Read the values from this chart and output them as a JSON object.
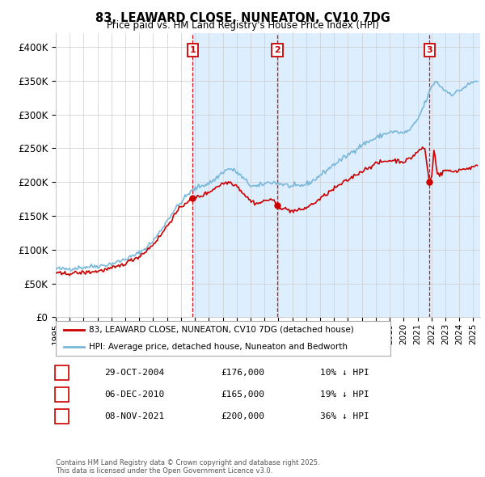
{
  "title": "83, LEAWARD CLOSE, NUNEATON, CV10 7DG",
  "subtitle": "Price paid vs. HM Land Registry's House Price Index (HPI)",
  "hpi_label": "HPI: Average price, detached house, Nuneaton and Bedworth",
  "property_label": "83, LEAWARD CLOSE, NUNEATON, CV10 7DG (detached house)",
  "footer": "Contains HM Land Registry data © Crown copyright and database right 2025.\nThis data is licensed under the Open Government Licence v3.0.",
  "transactions": [
    {
      "num": 1,
      "date": "29-OCT-2004",
      "price": 176000,
      "pct": "10%",
      "year_x": 2004.83
    },
    {
      "num": 2,
      "date": "06-DEC-2010",
      "price": 165000,
      "pct": "19%",
      "year_x": 2010.92
    },
    {
      "num": 3,
      "date": "08-NOV-2021",
      "price": 200000,
      "pct": "36%",
      "year_x": 2021.85
    }
  ],
  "ylim": [
    0,
    420000
  ],
  "yticks": [
    0,
    50000,
    100000,
    150000,
    200000,
    250000,
    300000,
    350000,
    400000
  ],
  "ytick_labels": [
    "£0",
    "£50K",
    "£100K",
    "£150K",
    "£200K",
    "£250K",
    "£300K",
    "£350K",
    "£400K"
  ],
  "x_start": 1995.0,
  "x_end": 2025.5,
  "xticks": [
    1995,
    1996,
    1997,
    1998,
    1999,
    2000,
    2001,
    2002,
    2003,
    2004,
    2005,
    2006,
    2007,
    2008,
    2009,
    2010,
    2011,
    2012,
    2013,
    2014,
    2015,
    2016,
    2017,
    2018,
    2019,
    2020,
    2021,
    2022,
    2023,
    2024,
    2025
  ],
  "hpi_color": "#7ab8d9",
  "property_color": "#cc0000",
  "transaction_color": "#cc0000",
  "shade_color": "#ddeeff",
  "grid_color": "#cccccc",
  "bg_color": "#ffffff",
  "hpi_anchors": [
    [
      1995.0,
      72000
    ],
    [
      1995.5,
      71000
    ],
    [
      1996.0,
      72000
    ],
    [
      1996.5,
      73000
    ],
    [
      1997.0,
      74000
    ],
    [
      1997.5,
      75000
    ],
    [
      1998.0,
      76000
    ],
    [
      1998.5,
      77000
    ],
    [
      1999.0,
      79000
    ],
    [
      1999.5,
      82000
    ],
    [
      2000.0,
      86000
    ],
    [
      2000.5,
      90000
    ],
    [
      2001.0,
      95000
    ],
    [
      2001.5,
      103000
    ],
    [
      2002.0,
      113000
    ],
    [
      2002.5,
      127000
    ],
    [
      2003.0,
      143000
    ],
    [
      2003.5,
      158000
    ],
    [
      2004.0,
      170000
    ],
    [
      2004.5,
      182000
    ],
    [
      2005.0,
      190000
    ],
    [
      2005.5,
      195000
    ],
    [
      2006.0,
      198000
    ],
    [
      2006.5,
      205000
    ],
    [
      2007.0,
      215000
    ],
    [
      2007.5,
      220000
    ],
    [
      2008.0,
      215000
    ],
    [
      2008.5,
      205000
    ],
    [
      2009.0,
      195000
    ],
    [
      2009.5,
      193000
    ],
    [
      2010.0,
      198000
    ],
    [
      2010.5,
      200000
    ],
    [
      2011.0,
      198000
    ],
    [
      2011.5,
      196000
    ],
    [
      2012.0,
      193000
    ],
    [
      2012.5,
      194000
    ],
    [
      2013.0,
      197000
    ],
    [
      2013.5,
      202000
    ],
    [
      2014.0,
      210000
    ],
    [
      2014.5,
      218000
    ],
    [
      2015.0,
      226000
    ],
    [
      2015.5,
      233000
    ],
    [
      2016.0,
      240000
    ],
    [
      2016.5,
      248000
    ],
    [
      2017.0,
      255000
    ],
    [
      2017.5,
      260000
    ],
    [
      2018.0,
      265000
    ],
    [
      2018.5,
      270000
    ],
    [
      2019.0,
      274000
    ],
    [
      2019.5,
      274000
    ],
    [
      2020.0,
      272000
    ],
    [
      2020.5,
      278000
    ],
    [
      2021.0,
      292000
    ],
    [
      2021.5,
      315000
    ],
    [
      2022.0,
      340000
    ],
    [
      2022.3,
      350000
    ],
    [
      2022.5,
      345000
    ],
    [
      2023.0,
      335000
    ],
    [
      2023.5,
      330000
    ],
    [
      2024.0,
      335000
    ],
    [
      2024.5,
      342000
    ],
    [
      2025.0,
      348000
    ],
    [
      2025.3,
      350000
    ]
  ],
  "prop_anchors": [
    [
      1995.0,
      65000
    ],
    [
      1995.5,
      64000
    ],
    [
      1996.0,
      65000
    ],
    [
      1996.5,
      65500
    ],
    [
      1997.0,
      66000
    ],
    [
      1997.5,
      67000
    ],
    [
      1998.0,
      68000
    ],
    [
      1998.5,
      70000
    ],
    [
      1999.0,
      72000
    ],
    [
      1999.5,
      75000
    ],
    [
      2000.0,
      80000
    ],
    [
      2000.5,
      85000
    ],
    [
      2001.0,
      90000
    ],
    [
      2001.5,
      98000
    ],
    [
      2002.0,
      108000
    ],
    [
      2002.5,
      120000
    ],
    [
      2003.0,
      135000
    ],
    [
      2003.5,
      150000
    ],
    [
      2004.0,
      163000
    ],
    [
      2004.6,
      174000
    ],
    [
      2004.83,
      176000
    ],
    [
      2005.0,
      177000
    ],
    [
      2005.5,
      180000
    ],
    [
      2006.0,
      185000
    ],
    [
      2006.5,
      192000
    ],
    [
      2007.0,
      198000
    ],
    [
      2007.5,
      200000
    ],
    [
      2008.0,
      195000
    ],
    [
      2008.5,
      183000
    ],
    [
      2009.0,
      172000
    ],
    [
      2009.5,
      168000
    ],
    [
      2010.0,
      172000
    ],
    [
      2010.5,
      175000
    ],
    [
      2010.92,
      165000
    ],
    [
      2011.0,
      164000
    ],
    [
      2011.5,
      160000
    ],
    [
      2012.0,
      157000
    ],
    [
      2012.5,
      158000
    ],
    [
      2013.0,
      162000
    ],
    [
      2013.5,
      168000
    ],
    [
      2014.0,
      175000
    ],
    [
      2014.5,
      183000
    ],
    [
      2015.0,
      190000
    ],
    [
      2015.5,
      197000
    ],
    [
      2016.0,
      203000
    ],
    [
      2016.5,
      210000
    ],
    [
      2017.0,
      216000
    ],
    [
      2017.5,
      222000
    ],
    [
      2018.0,
      227000
    ],
    [
      2018.5,
      230000
    ],
    [
      2019.0,
      232000
    ],
    [
      2019.5,
      232000
    ],
    [
      2020.0,
      230000
    ],
    [
      2020.5,
      235000
    ],
    [
      2021.0,
      245000
    ],
    [
      2021.5,
      252000
    ],
    [
      2021.85,
      200000
    ],
    [
      2022.0,
      205000
    ],
    [
      2022.2,
      250000
    ],
    [
      2022.4,
      215000
    ],
    [
      2022.6,
      210000
    ],
    [
      2023.0,
      218000
    ],
    [
      2023.5,
      215000
    ],
    [
      2024.0,
      218000
    ],
    [
      2024.5,
      220000
    ],
    [
      2025.0,
      222000
    ],
    [
      2025.3,
      223000
    ]
  ]
}
